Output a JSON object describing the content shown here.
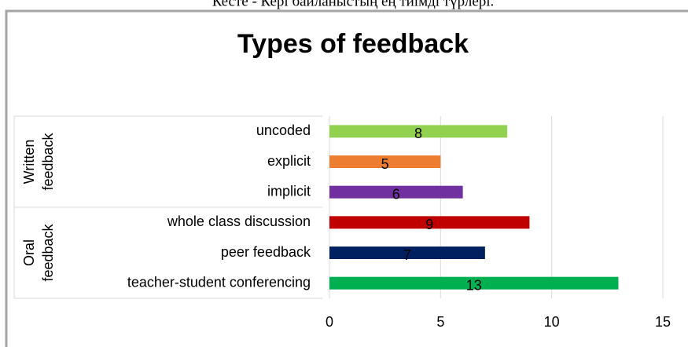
{
  "caption": "Кесте - Кері байланыстың ең тиімді түрлері.",
  "chart_data": {
    "type": "bar",
    "orientation": "horizontal",
    "title": "Types of feedback",
    "categories": [
      "uncoded",
      "explicit",
      "implicit",
      "whole class discussion",
      "peer feedback",
      "teacher-student conferencing"
    ],
    "values": [
      8,
      5,
      6,
      9,
      7,
      13
    ],
    "colors": [
      "#92d050",
      "#ed7d31",
      "#7030a0",
      "#c00000",
      "#002060",
      "#00b050"
    ],
    "groups": [
      {
        "lines": [
          "Written",
          "feedback"
        ],
        "count": 3
      },
      {
        "lines": [
          "Oral",
          "feedback"
        ],
        "count": 3
      }
    ],
    "xlim": [
      0,
      15
    ],
    "xticks": [
      0,
      5,
      10,
      15
    ],
    "grid": true
  }
}
